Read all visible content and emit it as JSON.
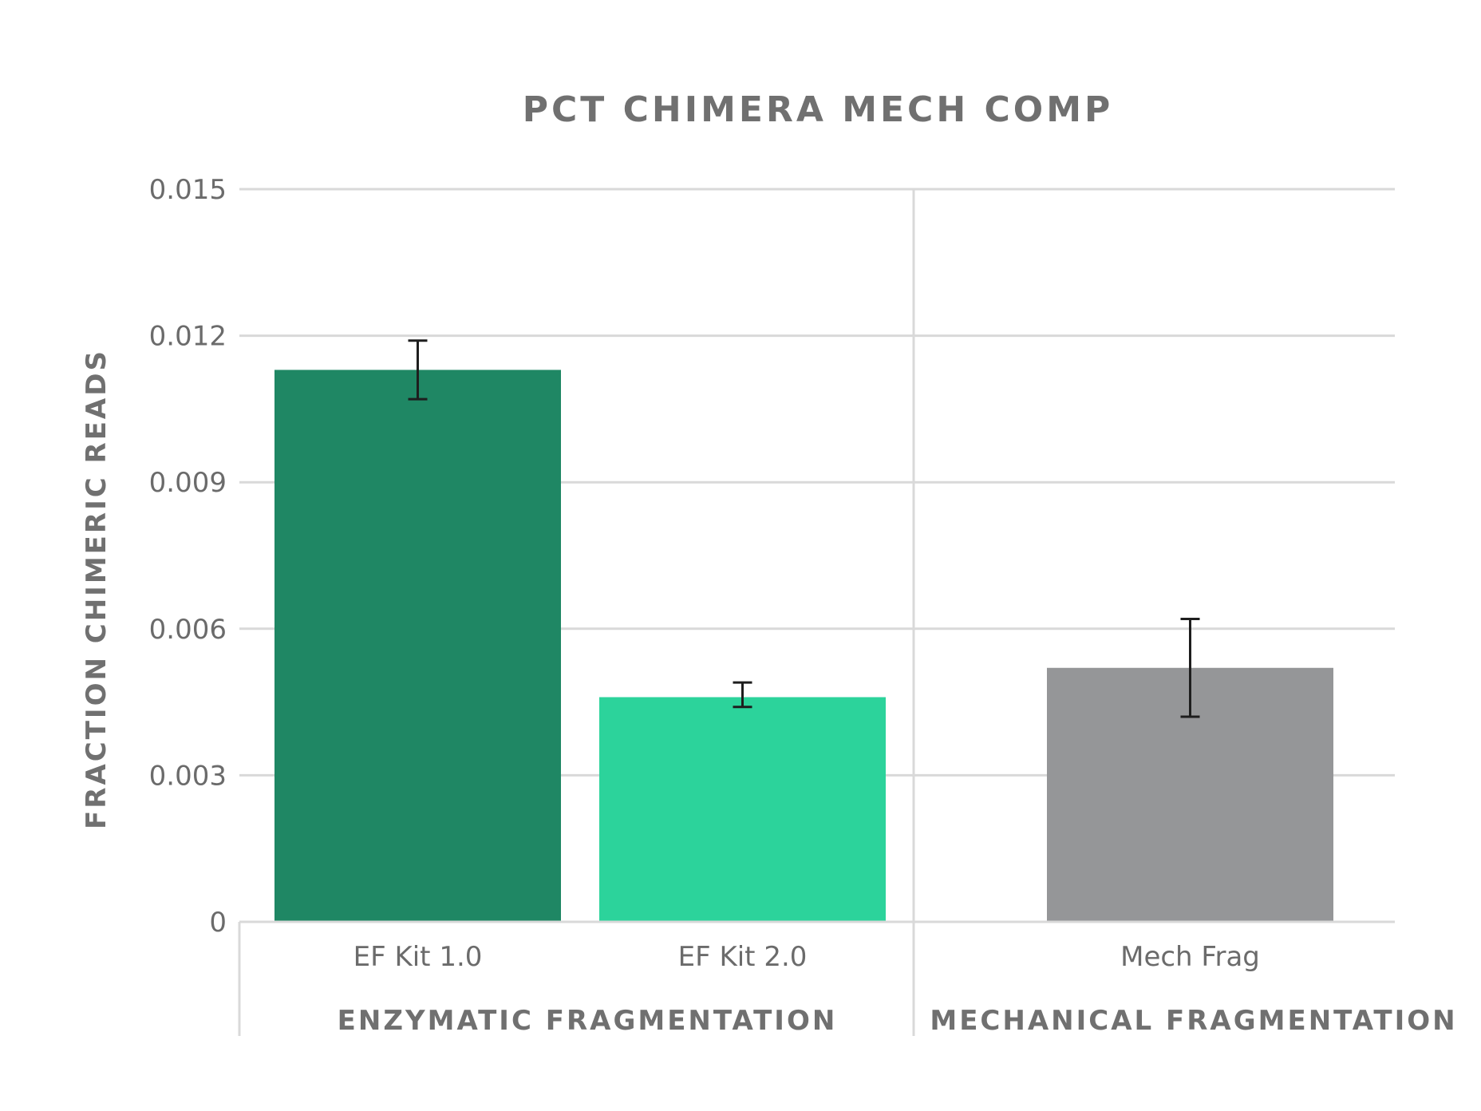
{
  "chart_data": {
    "type": "bar",
    "title": "PCT CHIMERA MECH COMP",
    "ylabel": "FRACTION CHIMERIC READS",
    "xlabel": "",
    "ylim": [
      0,
      0.015
    ],
    "yticks": [
      "0",
      "0.003",
      "0.006",
      "0.009",
      "0.012",
      "0.015"
    ],
    "grid": true,
    "groups": [
      {
        "label": "ENZYMATIC FRAGMENTATION",
        "categories": [
          "EF Kit 1.0",
          "EF Kit 2.0"
        ]
      },
      {
        "label": "MECHANICAL FRAGMENTATION",
        "categories": [
          "Mech Frag"
        ]
      }
    ],
    "categories": [
      "EF Kit 1.0",
      "EF Kit 2.0",
      "Mech Frag"
    ],
    "values": [
      0.0113,
      0.0046,
      0.0052
    ],
    "error_low": [
      0.0107,
      0.0044,
      0.0042
    ],
    "error_high": [
      0.0119,
      0.0049,
      0.0062
    ],
    "colors": [
      "#1f8764",
      "#2cd39b",
      "#959698"
    ]
  }
}
